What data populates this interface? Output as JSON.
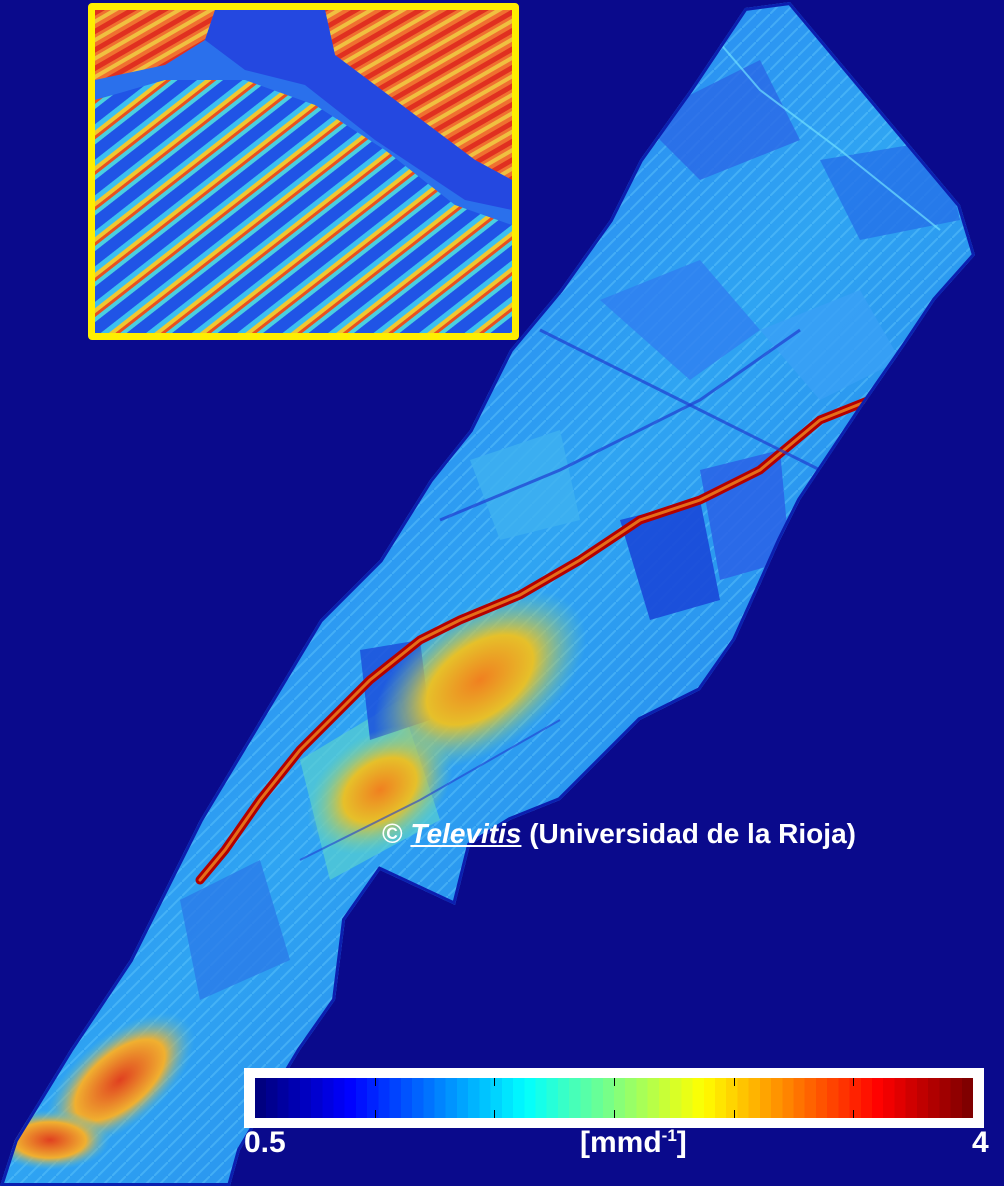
{
  "credit": {
    "symbol": "©",
    "brand": "Televitis",
    "institution": "(Universidad de  la Rioja)"
  },
  "colorbar": {
    "min_label": "0.5",
    "max_label": "4",
    "unit_base": "[mmd",
    "unit_exp": "-1",
    "unit_close": "]",
    "min": 0.5,
    "max": 4,
    "colormap": "jet",
    "ticks": 7
  },
  "colors": {
    "background": "#0a0a8c",
    "inset_border": "#ffee00",
    "text": "#ffffff"
  }
}
